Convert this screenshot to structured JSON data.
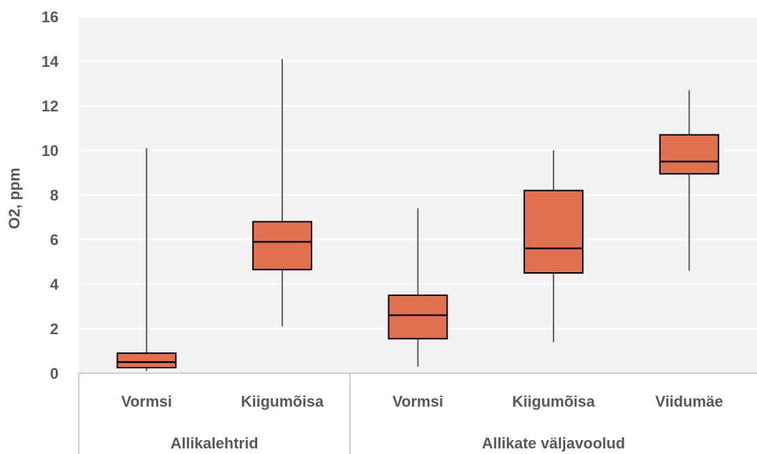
{
  "chart_data": {
    "type": "box",
    "ylabel": "O2, ppm",
    "ylim": [
      0,
      16
    ],
    "yticks": [
      "0",
      "2",
      "4",
      "6",
      "8",
      "10",
      "12",
      "14",
      "16"
    ],
    "grid": true,
    "groups": [
      {
        "label": "Allikalehtrid",
        "categories": [
          {
            "label": "Vormsi",
            "min": 0.1,
            "q1": 0.25,
            "median": 0.5,
            "q3": 0.9,
            "max": 10.1
          },
          {
            "label": "Kiigumõisa",
            "min": 2.1,
            "q1": 4.65,
            "median": 5.9,
            "q3": 6.8,
            "max": 14.1
          }
        ]
      },
      {
        "label": "Allikate väljavoolud",
        "categories": [
          {
            "label": "Vormsi",
            "min": 0.3,
            "q1": 1.55,
            "median": 2.6,
            "q3": 3.5,
            "max": 7.4
          },
          {
            "label": "Kiigumõisa",
            "min": 1.4,
            "q1": 4.5,
            "median": 5.6,
            "q3": 8.2,
            "max": 10.0
          },
          {
            "label": "Viidumäe",
            "min": 4.6,
            "q1": 8.95,
            "median": 9.5,
            "q3": 10.7,
            "max": 12.7
          }
        ]
      }
    ],
    "colors": {
      "box_fill": "#E07050",
      "box_stroke": "#000000",
      "whisker": "#595959",
      "plot_bg": "#F2F2F2",
      "gridline": "#FFFFFF",
      "axis_line": "#BFBFBF",
      "text": "#595959"
    }
  }
}
